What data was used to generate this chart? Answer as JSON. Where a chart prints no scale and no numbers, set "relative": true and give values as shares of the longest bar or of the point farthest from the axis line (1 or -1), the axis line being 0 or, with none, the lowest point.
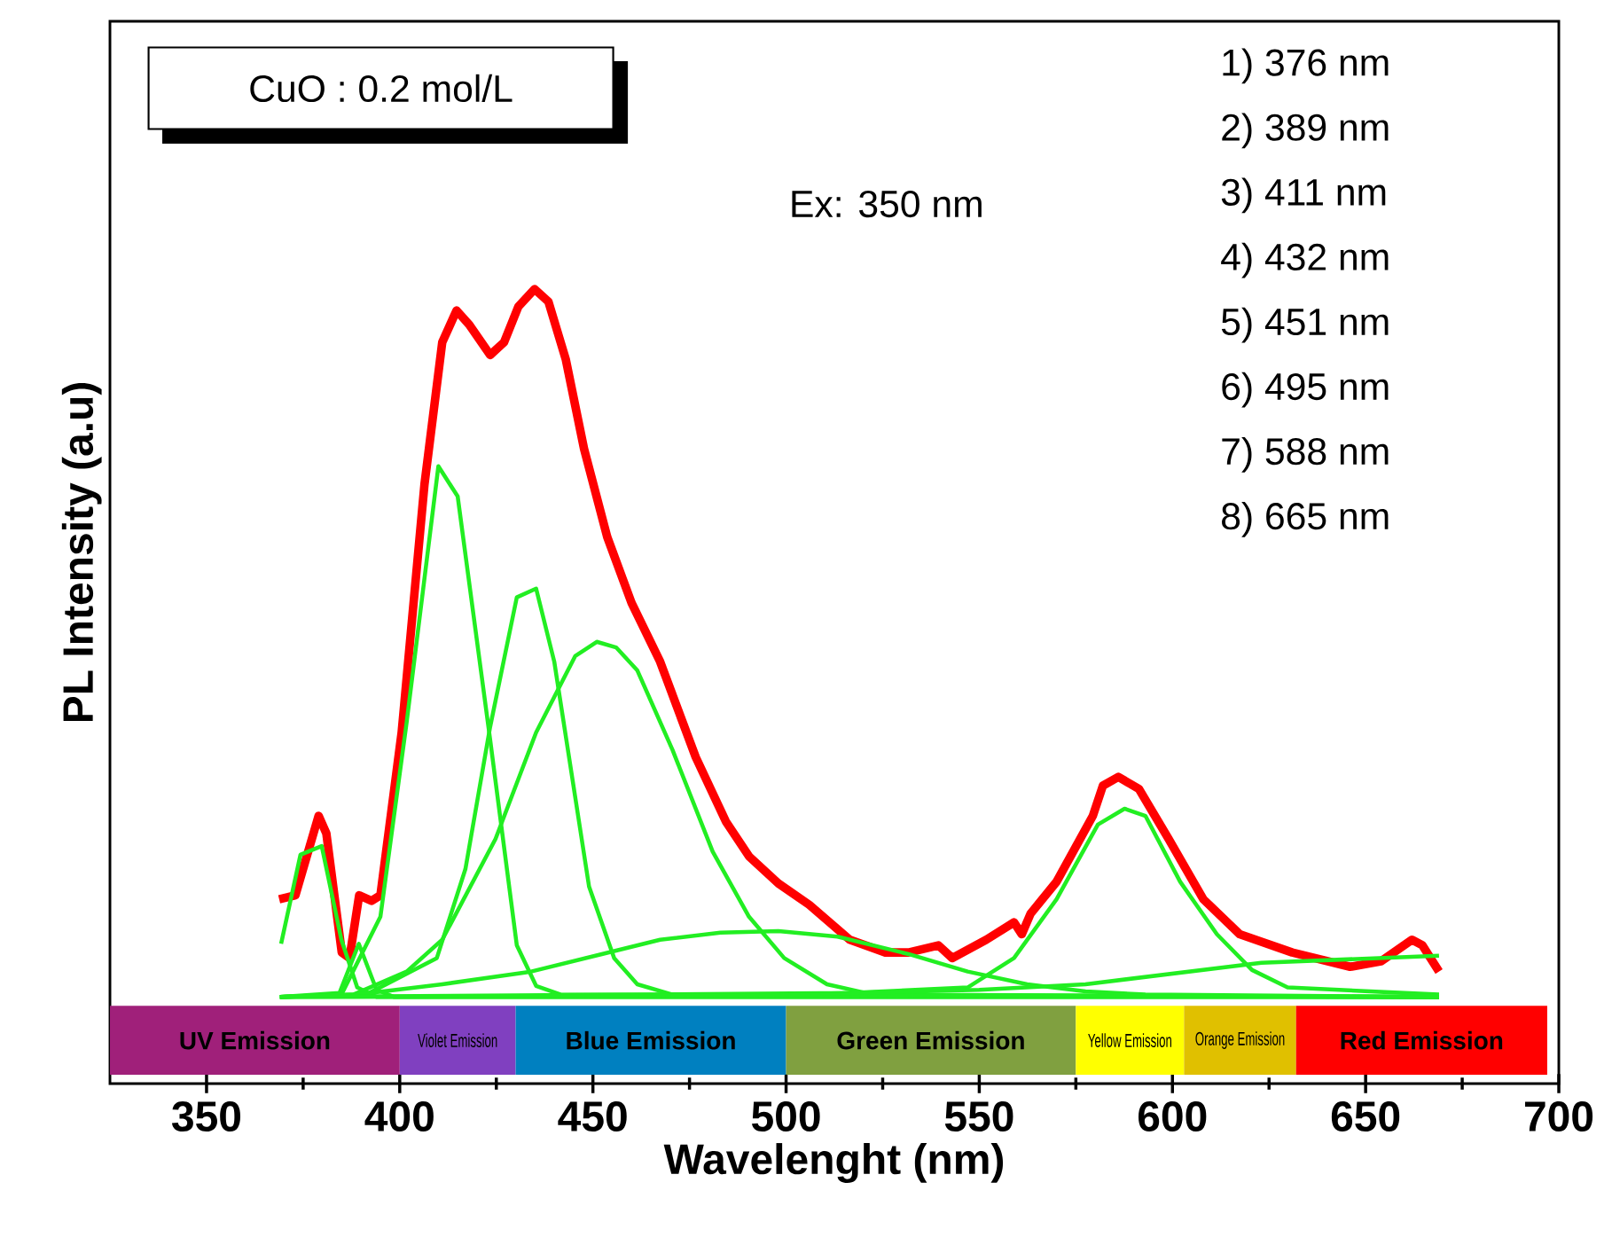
{
  "chart_data": {
    "type": "line",
    "relative": true,
    "xlabel": "Wavelenght (nm)",
    "ylabel": "PL Intensity (a.u)",
    "xlim": [
      325,
      700
    ],
    "xticks": [
      350,
      400,
      450,
      500,
      550,
      600,
      650,
      700
    ],
    "annotations": [
      "CuO : 0.2 mol/L",
      "Ex: 350 nm",
      "1) 376 nm",
      "2) 389 nm",
      "3) 411 nm",
      "4) 432 nm",
      "5) 451 nm",
      "6) 495 nm",
      "7) 588 nm",
      "8) 665 nm"
    ],
    "bands": [
      {
        "axis": "x",
        "from": 325,
        "to": 400,
        "label": "UV Emission",
        "color": "#a0207a"
      },
      {
        "axis": "x",
        "from": 400,
        "to": 430,
        "label": "Violet Emission",
        "color": "#8040c0"
      },
      {
        "axis": "x",
        "from": 430,
        "to": 500,
        "label": "Blue Emission",
        "color": "#0080c0"
      },
      {
        "axis": "x",
        "from": 500,
        "to": 575,
        "label": "Green Emission",
        "color": "#80a040"
      },
      {
        "axis": "x",
        "from": 575,
        "to": 603,
        "label": "Yellow Emission",
        "color": "#ffff00"
      },
      {
        "axis": "x",
        "from": 603,
        "to": 632,
        "label": "Orange Emission",
        "color": "#e0c000"
      },
      {
        "axis": "x",
        "from": 632,
        "to": 697,
        "label": "Red Emission",
        "color": "#ff0000"
      }
    ],
    "series": [
      {
        "color": "#ff0000",
        "x": [
          368.8,
          373,
          379,
          381,
          385,
          387,
          389.5,
          392.7,
          395,
          400.5,
          406.4,
          411,
          414.7,
          418,
          423.4,
          427,
          430.7,
          434.9,
          438.5,
          443,
          447.7,
          453.7,
          460,
          467.4,
          476.6,
          484.4,
          490.4,
          498,
          506,
          516.5,
          525.7,
          531.7,
          539.4,
          543,
          551.8,
          559,
          561,
          563.3,
          570,
          579.4,
          582,
          586,
          591.3,
          599,
          608,
          617.4,
          631,
          646,
          654,
          662,
          664.7,
          669
        ],
        "values": [
          0.232,
          0.237,
          0.337,
          0.315,
          0.165,
          0.158,
          0.237,
          0.23,
          0.237,
          0.442,
          0.754,
          0.933,
          0.973,
          0.955,
          0.917,
          0.933,
          0.978,
          1.0,
          0.984,
          0.911,
          0.799,
          0.688,
          0.605,
          0.531,
          0.411,
          0.33,
          0.286,
          0.252,
          0.225,
          0.181,
          0.165,
          0.165,
          0.174,
          0.158,
          0.181,
          0.203,
          0.188,
          0.214,
          0.254,
          0.337,
          0.375,
          0.386,
          0.371,
          0.308,
          0.232,
          0.188,
          0.165,
          0.147,
          0.154,
          0.181,
          0.174,
          0.141
        ]
      },
      {
        "color": "#22ee22",
        "x": [
          369.3,
          374.3,
          379.8,
          384.9,
          389,
          394,
          669
        ],
        "values": [
          0.176,
          0.288,
          0.299,
          0.181,
          0.121,
          0.109,
          0.109
        ]
      },
      {
        "color": "#22ee22",
        "x": [
          369,
          384.4,
          389.4,
          394,
          398.6,
          669
        ],
        "values": [
          0.109,
          0.114,
          0.176,
          0.118,
          0.109,
          0.109
        ]
      },
      {
        "color": "#22ee22",
        "x": [
          369,
          384.9,
          395,
          401.8,
          410,
          415,
          423.4,
          430.3,
          435.3,
          441.7,
          669
        ],
        "values": [
          0.109,
          0.112,
          0.21,
          0.455,
          0.777,
          0.739,
          0.433,
          0.174,
          0.123,
          0.112,
          0.109
        ]
      },
      {
        "color": "#22ee22",
        "x": [
          369,
          391.3,
          409.6,
          417,
          423.4,
          430.3,
          435.3,
          440,
          449,
          455.5,
          461.5,
          470.6,
          669
        ],
        "values": [
          0.109,
          0.112,
          0.158,
          0.27,
          0.449,
          0.612,
          0.623,
          0.531,
          0.248,
          0.158,
          0.125,
          0.112,
          0.109
        ]
      },
      {
        "color": "#22ee22",
        "x": [
          369,
          388,
          401.8,
          411,
          424.8,
          435.3,
          445.4,
          451,
          456,
          461.5,
          470.6,
          481,
          490.4,
          499.5,
          510.6,
          522.5,
          669
        ],
        "values": [
          0.109,
          0.112,
          0.141,
          0.181,
          0.308,
          0.442,
          0.538,
          0.556,
          0.549,
          0.52,
          0.42,
          0.292,
          0.21,
          0.158,
          0.125,
          0.112,
          0.109
        ]
      },
      {
        "color": "#22ee22",
        "x": [
          369,
          389,
          411,
          434,
          452.3,
          467.4,
          483,
          498,
          513.3,
          531.7,
          547,
          562.4,
          577.5,
          593,
          669
        ],
        "values": [
          0.109,
          0.112,
          0.125,
          0.141,
          0.163,
          0.181,
          0.19,
          0.192,
          0.185,
          0.163,
          0.141,
          0.125,
          0.116,
          0.112,
          0.109
        ]
      },
      {
        "color": "#22ee22",
        "x": [
          369,
          516.5,
          547,
          559,
          570,
          580.7,
          587.6,
          593,
          602,
          611.5,
          620.6,
          629.8,
          669
        ],
        "values": [
          0.109,
          0.114,
          0.121,
          0.158,
          0.232,
          0.326,
          0.346,
          0.337,
          0.254,
          0.188,
          0.143,
          0.121,
          0.112
        ]
      },
      {
        "color": "#22ee22",
        "x": [
          369,
          388,
          500,
          550,
          577.5,
          623,
          669
        ],
        "values": [
          0.109,
          0.109,
          0.112,
          0.118,
          0.125,
          0.152,
          0.161
        ]
      }
    ]
  }
}
